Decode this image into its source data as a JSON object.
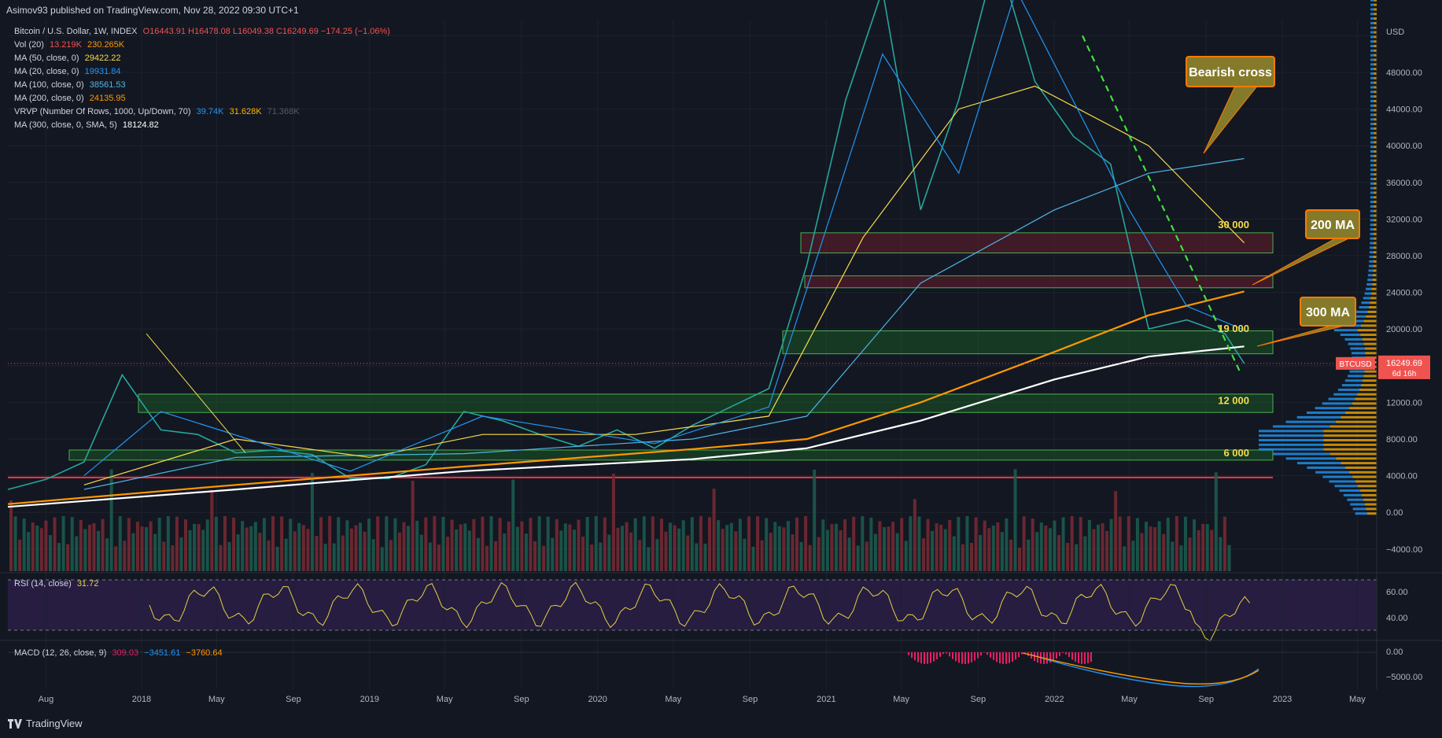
{
  "header": {
    "published_line": "Asimov93 published on TradingView.com, Nov 28, 2022 09:30 UTC+1"
  },
  "legend": {
    "symbol": "Bitcoin / U.S. Dollar, 1W, INDEX",
    "ohlc": "O16443.91 H16478.08 L16049.38 C16249.69 −174.25 (−1.06%)",
    "vol_label": "Vol (20)",
    "vol_val1": "13.219K",
    "vol_val2": "230.265K",
    "ma50_label": "MA (50, close, 0)",
    "ma50_val": "29422.22",
    "ma20_label": "MA (20, close, 0)",
    "ma20_val": "19931.84",
    "ma100_label": "MA (100, close, 0)",
    "ma100_val": "38561.53",
    "ma200_label": "MA (200, close, 0)",
    "ma200_val": "24135.95",
    "vrvp_label": "VRVP (Number Of Rows, 1000, Up/Down, 70)",
    "vrvp_v1": "39.74K",
    "vrvp_v2": "31.628K",
    "vrvp_v3": "71.368K",
    "ma300_label": "MA (300, close, 0, SMA, 5)",
    "ma300_val": "18124.82",
    "rsi_label": "RSI (14, close)",
    "rsi_val": "31.72",
    "macd_label": "MACD (12, 26, close, 9)",
    "macd_v1": "309.03",
    "macd_v2": "−3451.61",
    "macd_v3": "−3760.64"
  },
  "price_axis": {
    "currency": "USD",
    "ticks": [
      "48000.00",
      "44000.00",
      "40000.00",
      "36000.00",
      "32000.00",
      "28000.00",
      "24000.00",
      "20000.00",
      "16000.00",
      "12000.00",
      "8000.00",
      "4000.00",
      "0.00",
      "−4000.00"
    ],
    "last_symbol": "BTCUSD",
    "last_price": "16249.69",
    "countdown": "6d 16h"
  },
  "rsi_axis": [
    "60.00",
    "40.00"
  ],
  "macd_axis": [
    "0.00",
    "−5000.00"
  ],
  "time_axis": [
    "Aug",
    "2018",
    "May",
    "Sep",
    "2019",
    "May",
    "Sep",
    "2020",
    "May",
    "Sep",
    "2021",
    "May",
    "Sep",
    "2022",
    "May",
    "Sep",
    "2023",
    "May"
  ],
  "annotations": {
    "bearish_cross": "Bearish cross",
    "ma200": "200 MA",
    "ma300": "300 MA",
    "lvl_30000": "30 000",
    "lvl_19000": "19 000",
    "lvl_12000": "12 000",
    "lvl_6000": "6 000"
  },
  "colors": {
    "background": "#131722",
    "up": "#26a69a",
    "down": "#ef5350",
    "ma20": "#2196f3",
    "ma50": "#f7dc4a",
    "ma100": "#4fb6e8",
    "ma200": "#ff9800",
    "ma300": "#ffffff",
    "rsi": "#e6d041",
    "callout_fill": "#857a2a",
    "callout_border": "#ff7a00"
  },
  "footer": {
    "brand": "TradingView"
  },
  "chart_data": {
    "type": "line",
    "title": "Bitcoin / U.S. Dollar, 1W, INDEX",
    "interval": "weekly",
    "y_unit": "USD",
    "ylim": [
      -6000,
      54000
    ],
    "x_range": [
      "2017-06",
      "2023-06"
    ],
    "price_series": {
      "name": "BTCUSD close (approx)",
      "x": [
        "2017-06",
        "2017-08",
        "2017-10",
        "2017-12",
        "2018-02",
        "2018-04",
        "2018-06",
        "2018-08",
        "2018-10",
        "2018-12",
        "2019-02",
        "2019-04",
        "2019-06",
        "2019-08",
        "2019-10",
        "2019-12",
        "2020-02",
        "2020-04",
        "2020-06",
        "2020-08",
        "2020-10",
        "2020-12",
        "2021-02",
        "2021-04",
        "2021-06",
        "2021-08",
        "2021-10",
        "2021-12",
        "2022-02",
        "2022-04",
        "2022-06",
        "2022-08",
        "2022-10",
        "2022-11"
      ],
      "values": [
        2500,
        3600,
        5500,
        15000,
        9000,
        8500,
        6500,
        6800,
        6300,
        3700,
        3700,
        5200,
        11000,
        10000,
        8500,
        7200,
        9000,
        7000,
        9500,
        11500,
        13500,
        27000,
        45000,
        57000,
        33000,
        45000,
        61000,
        47000,
        41000,
        38000,
        20000,
        21000,
        19500,
        16250
      ]
    },
    "moving_averages": [
      {
        "name": "MA 20",
        "last": 19931.84
      },
      {
        "name": "MA 50",
        "last": 29422.22
      },
      {
        "name": "MA 100",
        "last": 38561.53
      },
      {
        "name": "MA 200",
        "last": 24135.95
      },
      {
        "name": "MA 300",
        "last": 18124.82
      }
    ],
    "zones": [
      {
        "label": "30 000",
        "low": 28300,
        "high": 30500
      },
      {
        "label": "",
        "low": 24500,
        "high": 25800
      },
      {
        "label": "19 000",
        "low": 17300,
        "high": 19800
      },
      {
        "label": "12 000",
        "low": 10900,
        "high": 12900
      },
      {
        "label": "6 000",
        "low": 5700,
        "high": 6800
      }
    ],
    "horizontal_line": 3800,
    "rsi": {
      "name": "RSI (14, close)",
      "last": 31.72,
      "bands": [
        30,
        70
      ]
    },
    "macd": {
      "name": "MACD (12, 26, close, 9)",
      "values": [
        309.03,
        -3451.61,
        -3760.64
      ]
    }
  }
}
